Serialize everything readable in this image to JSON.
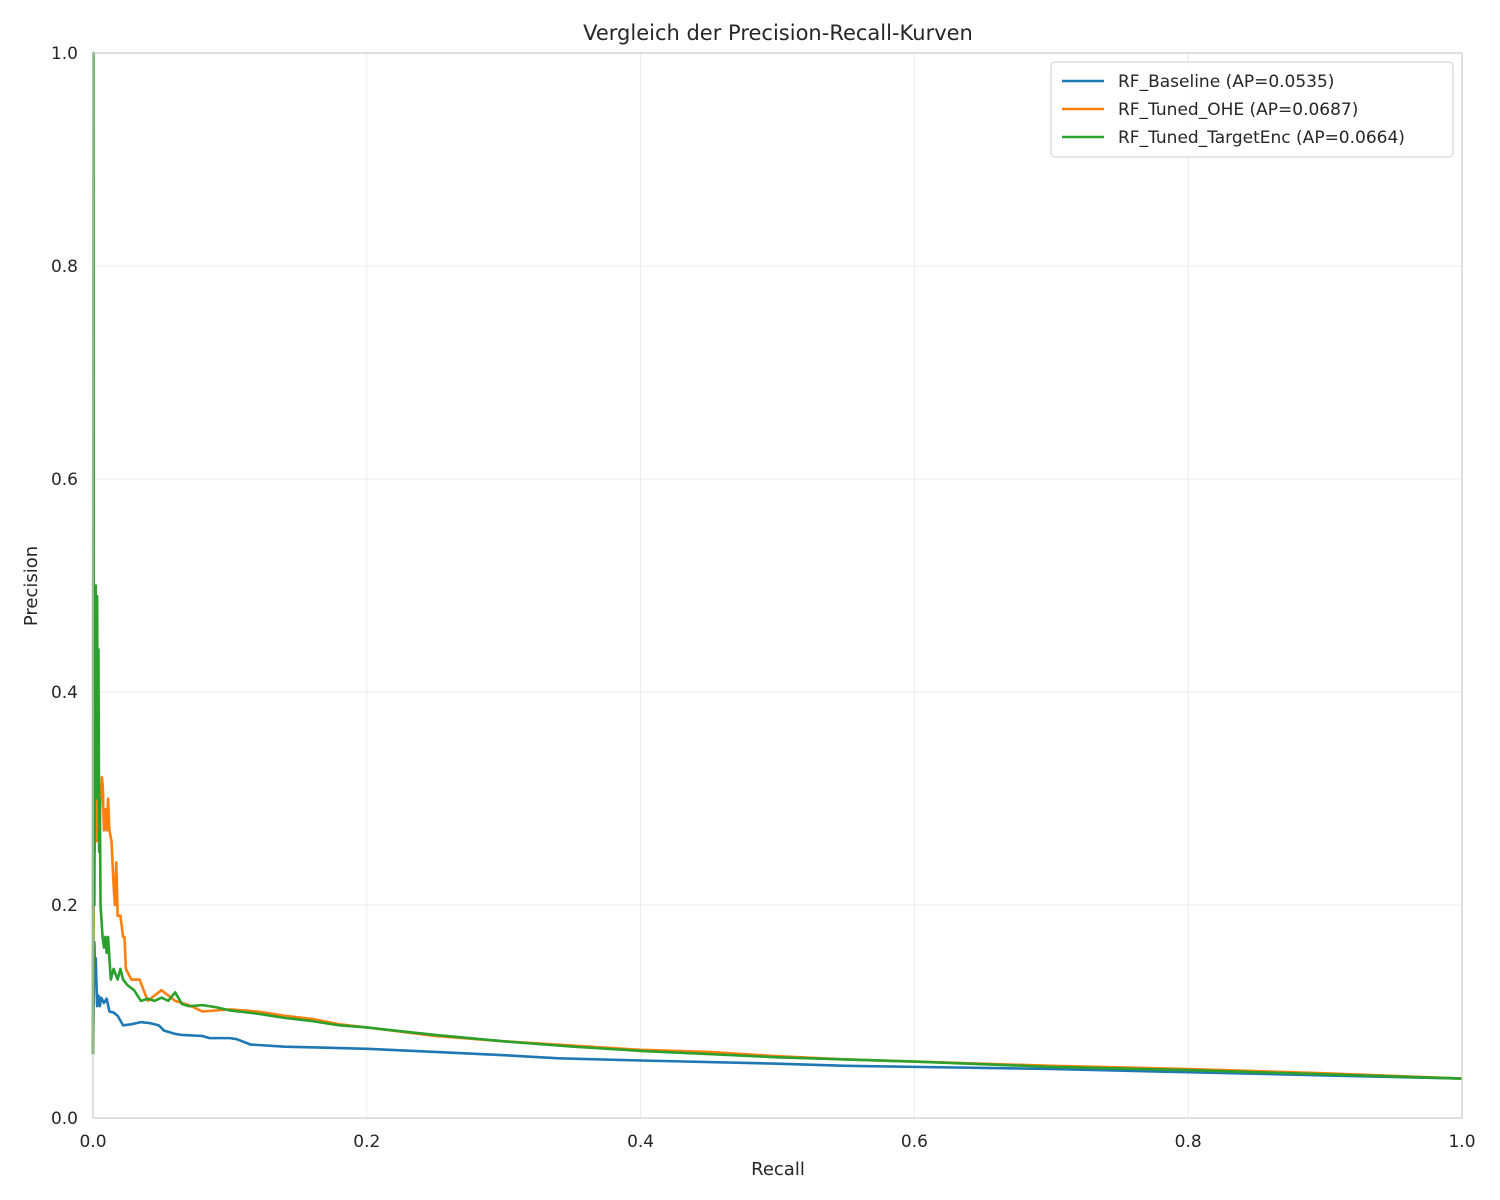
{
  "chart_data": {
    "type": "line",
    "title": "Vergleich der Precision-Recall-Kurven",
    "xlabel": "Recall",
    "ylabel": "Precision",
    "xlim": [
      0.0,
      1.0
    ],
    "ylim": [
      0.0,
      1.0
    ],
    "xticks": [
      "0.0",
      "0.2",
      "0.4",
      "0.6",
      "0.8",
      "1.0"
    ],
    "yticks": [
      "0.0",
      "0.2",
      "0.4",
      "0.6",
      "0.8",
      "1.0"
    ],
    "grid": true,
    "legend_position": "top-right",
    "series": [
      {
        "name": "RF_Baseline (AP=0.0535)",
        "color": "#1f77b4",
        "points": [
          [
            0.0,
            0.06
          ],
          [
            0.001,
            0.165
          ],
          [
            0.0015,
            0.13
          ],
          [
            0.002,
            0.15
          ],
          [
            0.003,
            0.105
          ],
          [
            0.004,
            0.115
          ],
          [
            0.005,
            0.105
          ],
          [
            0.006,
            0.113
          ],
          [
            0.008,
            0.108
          ],
          [
            0.01,
            0.112
          ],
          [
            0.012,
            0.1
          ],
          [
            0.015,
            0.099
          ],
          [
            0.018,
            0.096
          ],
          [
            0.022,
            0.087
          ],
          [
            0.028,
            0.088
          ],
          [
            0.035,
            0.09
          ],
          [
            0.042,
            0.089
          ],
          [
            0.048,
            0.087
          ],
          [
            0.052,
            0.082
          ],
          [
            0.06,
            0.079
          ],
          [
            0.065,
            0.078
          ],
          [
            0.08,
            0.077
          ],
          [
            0.085,
            0.075
          ],
          [
            0.1,
            0.075
          ],
          [
            0.105,
            0.074
          ],
          [
            0.115,
            0.069
          ],
          [
            0.14,
            0.067
          ],
          [
            0.17,
            0.066
          ],
          [
            0.2,
            0.065
          ],
          [
            0.25,
            0.062
          ],
          [
            0.3,
            0.059
          ],
          [
            0.34,
            0.056
          ],
          [
            0.4,
            0.054
          ],
          [
            0.5,
            0.051
          ],
          [
            0.55,
            0.049
          ],
          [
            0.6,
            0.048
          ],
          [
            0.7,
            0.046
          ],
          [
            0.8,
            0.043
          ],
          [
            0.9,
            0.04
          ],
          [
            1.0,
            0.037
          ]
        ]
      },
      {
        "name": "RF_Tuned_OHE (AP=0.0687)",
        "color": "#ff7f0e",
        "points": [
          [
            0.0,
            0.06
          ],
          [
            0.0008,
            0.33
          ],
          [
            0.0012,
            0.25
          ],
          [
            0.002,
            0.45
          ],
          [
            0.0028,
            0.26
          ],
          [
            0.0035,
            0.3
          ],
          [
            0.0045,
            0.26
          ],
          [
            0.0055,
            0.3
          ],
          [
            0.0065,
            0.32
          ],
          [
            0.0072,
            0.31
          ],
          [
            0.008,
            0.27
          ],
          [
            0.009,
            0.29
          ],
          [
            0.01,
            0.27
          ],
          [
            0.011,
            0.3
          ],
          [
            0.012,
            0.27
          ],
          [
            0.0135,
            0.26
          ],
          [
            0.015,
            0.22
          ],
          [
            0.016,
            0.2
          ],
          [
            0.017,
            0.24
          ],
          [
            0.018,
            0.19
          ],
          [
            0.02,
            0.19
          ],
          [
            0.022,
            0.17
          ],
          [
            0.023,
            0.17
          ],
          [
            0.024,
            0.14
          ],
          [
            0.028,
            0.13
          ],
          [
            0.034,
            0.13
          ],
          [
            0.037,
            0.12
          ],
          [
            0.04,
            0.11
          ],
          [
            0.045,
            0.115
          ],
          [
            0.05,
            0.12
          ],
          [
            0.055,
            0.115
          ],
          [
            0.06,
            0.11
          ],
          [
            0.07,
            0.106
          ],
          [
            0.08,
            0.1
          ],
          [
            0.1,
            0.102
          ],
          [
            0.12,
            0.1
          ],
          [
            0.14,
            0.096
          ],
          [
            0.16,
            0.093
          ],
          [
            0.18,
            0.088
          ],
          [
            0.2,
            0.085
          ],
          [
            0.25,
            0.077
          ],
          [
            0.3,
            0.072
          ],
          [
            0.35,
            0.068
          ],
          [
            0.4,
            0.064
          ],
          [
            0.45,
            0.062
          ],
          [
            0.5,
            0.058
          ],
          [
            0.55,
            0.055
          ],
          [
            0.6,
            0.053
          ],
          [
            0.7,
            0.049
          ],
          [
            0.8,
            0.046
          ],
          [
            0.9,
            0.042
          ],
          [
            1.0,
            0.037
          ]
        ]
      },
      {
        "name": "RF_Tuned_TargetEnc (AP=0.0664)",
        "color": "#2ca02c",
        "points": [
          [
            0.0,
            0.06
          ],
          [
            0.0003,
            1.0
          ],
          [
            0.0006,
            0.33
          ],
          [
            0.001,
            0.2
          ],
          [
            0.0015,
            0.4
          ],
          [
            0.002,
            0.5
          ],
          [
            0.0025,
            0.3
          ],
          [
            0.003,
            0.49
          ],
          [
            0.0035,
            0.35
          ],
          [
            0.004,
            0.44
          ],
          [
            0.0045,
            0.25
          ],
          [
            0.005,
            0.3
          ],
          [
            0.0055,
            0.2
          ],
          [
            0.006,
            0.19
          ],
          [
            0.007,
            0.17
          ],
          [
            0.008,
            0.16
          ],
          [
            0.009,
            0.17
          ],
          [
            0.01,
            0.155
          ],
          [
            0.011,
            0.17
          ],
          [
            0.012,
            0.15
          ],
          [
            0.013,
            0.13
          ],
          [
            0.015,
            0.14
          ],
          [
            0.018,
            0.13
          ],
          [
            0.02,
            0.14
          ],
          [
            0.022,
            0.13
          ],
          [
            0.025,
            0.125
          ],
          [
            0.03,
            0.12
          ],
          [
            0.035,
            0.11
          ],
          [
            0.04,
            0.112
          ],
          [
            0.045,
            0.11
          ],
          [
            0.05,
            0.113
          ],
          [
            0.055,
            0.11
          ],
          [
            0.06,
            0.118
          ],
          [
            0.065,
            0.107
          ],
          [
            0.07,
            0.105
          ],
          [
            0.08,
            0.106
          ],
          [
            0.09,
            0.104
          ],
          [
            0.1,
            0.101
          ],
          [
            0.12,
            0.098
          ],
          [
            0.14,
            0.094
          ],
          [
            0.16,
            0.091
          ],
          [
            0.18,
            0.087
          ],
          [
            0.2,
            0.085
          ],
          [
            0.25,
            0.078
          ],
          [
            0.3,
            0.072
          ],
          [
            0.35,
            0.067
          ],
          [
            0.4,
            0.063
          ],
          [
            0.45,
            0.06
          ],
          [
            0.5,
            0.057
          ],
          [
            0.55,
            0.055
          ],
          [
            0.6,
            0.053
          ],
          [
            0.7,
            0.048
          ],
          [
            0.8,
            0.045
          ],
          [
            0.9,
            0.041
          ],
          [
            1.0,
            0.037
          ]
        ]
      }
    ]
  }
}
